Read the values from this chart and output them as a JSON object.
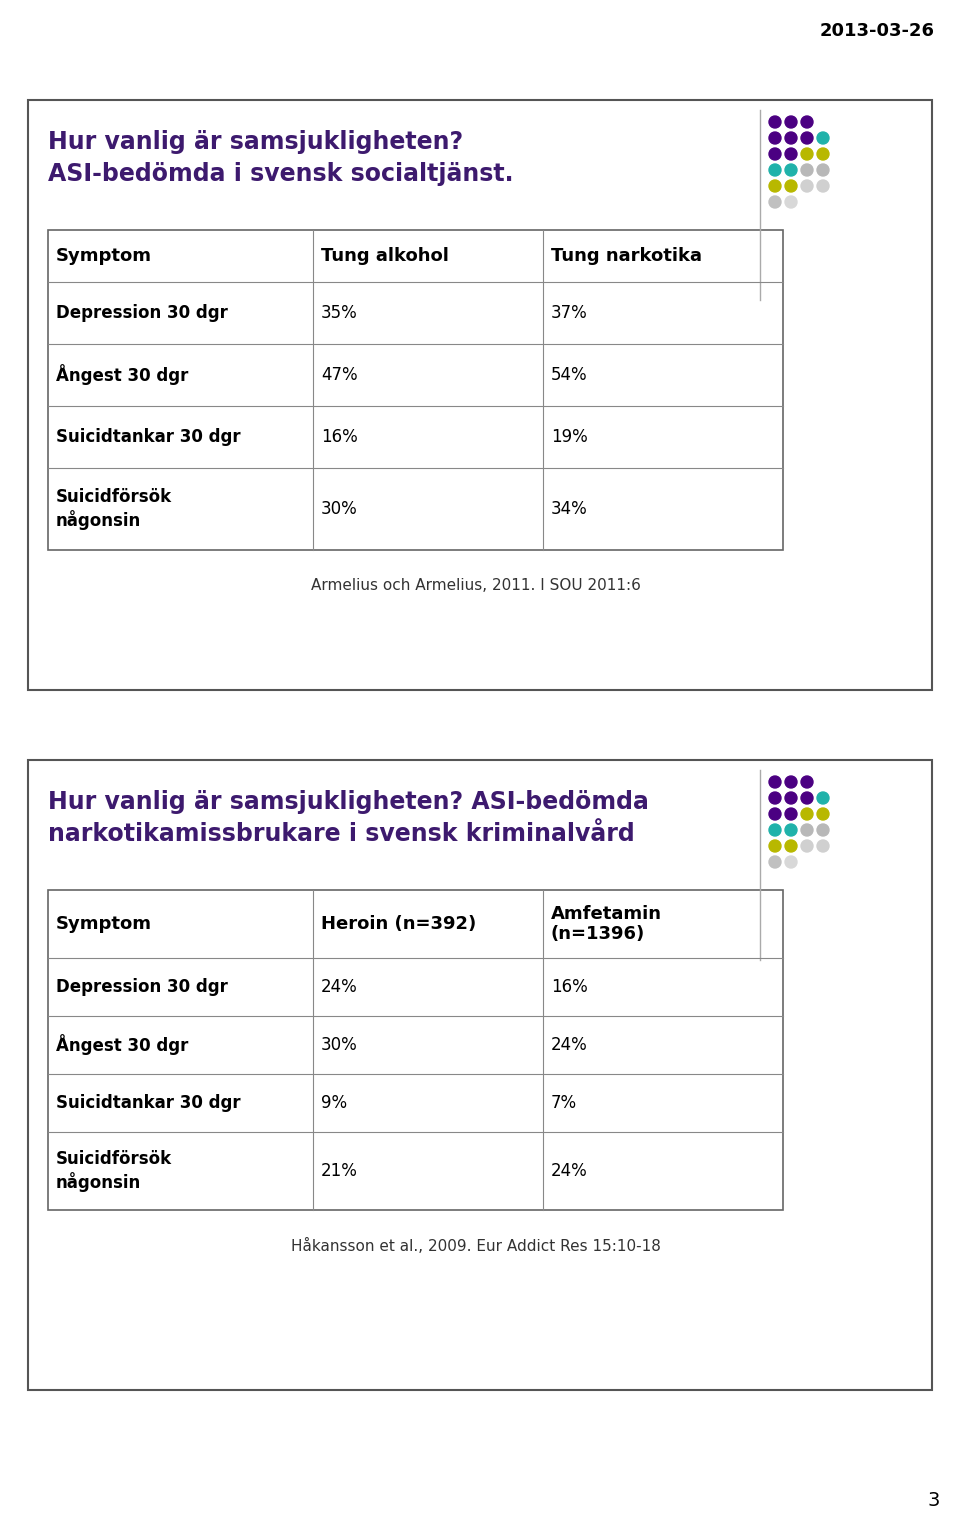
{
  "date_label": "2013-03-26",
  "page_number": "3",
  "background_color": "#ffffff",
  "table1": {
    "title_line1": "Hur vanlig är samsjukligheten?",
    "title_line2": "ASI-bedömda i svensk socialtjänst.",
    "title_color": "#3d1a6e",
    "headers": [
      "Symptom",
      "Tung alkohol",
      "Tung narkotika"
    ],
    "rows": [
      [
        "Depression 30 dgr",
        "35%",
        "37%"
      ],
      [
        "Ångest 30 dgr",
        "47%",
        "54%"
      ],
      [
        "Suicidtankar 30 dgr",
        "16%",
        "19%"
      ],
      [
        "Suicidförsök\nnågonsin",
        "30%",
        "34%"
      ]
    ],
    "citation": "Armelius och Armelius, 2011. I SOU 2011:6"
  },
  "table2": {
    "title_line1": "Hur vanlig är samsjukligheten? ASI-bedömda",
    "title_line2": "narkotikamissbrukare i svensk kriminalvård",
    "title_color": "#3d1a6e",
    "headers": [
      "Symptom",
      "Heroin (n=392)",
      "Amfetamin\n(n=1396)"
    ],
    "rows": [
      [
        "Depression 30 dgr",
        "24%",
        "16%"
      ],
      [
        "Ångest 30 dgr",
        "30%",
        "24%"
      ],
      [
        "Suicidtankar 30 dgr",
        "9%",
        "7%"
      ],
      [
        "Suicidförsök\nnågonsin",
        "21%",
        "24%"
      ]
    ],
    "citation": "Håkansson et al., 2009. Eur Addict Res 15:10-18"
  },
  "dots1": [
    [
      3,
      [
        "#4b0082",
        "#4b0082",
        "#4b0082"
      ]
    ],
    [
      4,
      [
        "#4b0082",
        "#4b0082",
        "#4b0082",
        "#20b2aa"
      ]
    ],
    [
      4,
      [
        "#4b0082",
        "#4b0082",
        "#b8b800",
        "#b8b800"
      ]
    ],
    [
      4,
      [
        "#20b2aa",
        "#20b2aa",
        "#b8b8b8",
        "#b8b8b8"
      ]
    ],
    [
      4,
      [
        "#b8b800",
        "#b8b800",
        "#d0d0d0",
        "#d0d0d0"
      ]
    ],
    [
      2,
      [
        "#c0c0c0",
        "#d8d8d8"
      ]
    ]
  ],
  "dots2": [
    [
      3,
      [
        "#4b0082",
        "#4b0082",
        "#4b0082"
      ]
    ],
    [
      4,
      [
        "#4b0082",
        "#4b0082",
        "#4b0082",
        "#20b2aa"
      ]
    ],
    [
      4,
      [
        "#4b0082",
        "#4b0082",
        "#b8b800",
        "#b8b800"
      ]
    ],
    [
      4,
      [
        "#20b2aa",
        "#20b2aa",
        "#b8b8b8",
        "#b8b8b8"
      ]
    ],
    [
      4,
      [
        "#b8b800",
        "#b8b800",
        "#d0d0d0",
        "#d0d0d0"
      ]
    ],
    [
      2,
      [
        "#c0c0c0",
        "#d8d8d8"
      ]
    ]
  ]
}
